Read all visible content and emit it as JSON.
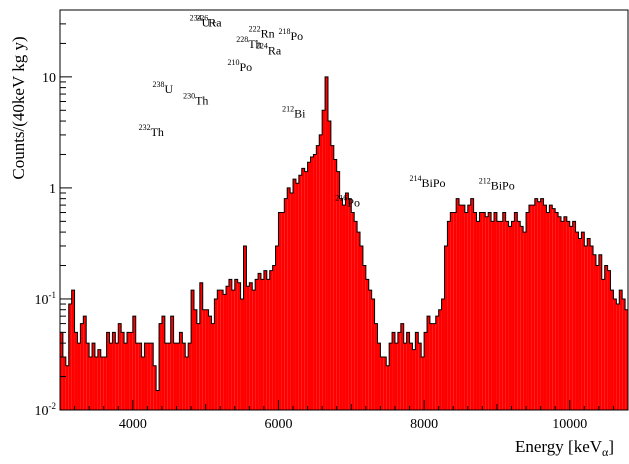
{
  "chart_data": {
    "type": "bar",
    "xlabel": "Energy [keV",
    "xlabel_sub": "α",
    "xlabel_close": "]",
    "ylabel": "Counts/(40keV kg y)",
    "xlim": [
      3000,
      10800
    ],
    "ylim": [
      0.01,
      40
    ],
    "yscale": "log",
    "bin_width": 40,
    "x_ticks": [
      {
        "value": 4000,
        "label": "4000"
      },
      {
        "value": 6000,
        "label": "6000"
      },
      {
        "value": 8000,
        "label": "8000"
      },
      {
        "value": 10000,
        "label": "10000"
      }
    ],
    "y_ticks": [
      {
        "value": 0.01,
        "base": "10",
        "exp": "-2"
      },
      {
        "value": 0.1,
        "base": "10",
        "exp": "-1"
      },
      {
        "value": 1,
        "label": "1"
      },
      {
        "value": 10,
        "label": "10"
      }
    ],
    "colors": {
      "fill": "#ff0000",
      "outline": "#000000"
    },
    "peaks": [
      {
        "sup": "232",
        "name": "Th",
        "x": 4080,
        "y": 2.6
      },
      {
        "sup": "238",
        "name": "U",
        "x": 4270,
        "y": 6.3
      },
      {
        "sup": "230",
        "name": "Th",
        "x": 4690,
        "y": 5.0
      },
      {
        "sup": "234",
        "name": "U+",
        "x": 4780,
        "y": 25
      },
      {
        "sup": "226",
        "name": "Ra",
        "x": 4870,
        "y": 25
      },
      {
        "sup": "210",
        "name": "Po",
        "x": 5300,
        "y": 10
      },
      {
        "sup": "228",
        "name": "Th",
        "x": 5420,
        "y": 16
      },
      {
        "sup": "222",
        "name": "Rn",
        "x": 5590,
        "y": 20
      },
      {
        "sup": "224",
        "name": "Ra",
        "x": 5690,
        "y": 14
      },
      {
        "sup": "218",
        "name": "Po",
        "x": 6000,
        "y": 19
      },
      {
        "sup": "212",
        "name": "Bi",
        "x": 6050,
        "y": 3.8
      },
      {
        "sup": "216",
        "name": "Po",
        "x": 6780,
        "y": 0.6
      },
      {
        "sup": "214",
        "name": "BiPo",
        "x": 7800,
        "y": 0.9
      },
      {
        "sup": "212",
        "name": "BiPo",
        "x": 8750,
        "y": 0.85
      }
    ],
    "bins_start": 3000,
    "values": [
      0.05,
      0.03,
      0.025,
      0.09,
      0.12,
      0.05,
      0.04,
      0.06,
      0.07,
      0.04,
      0.03,
      0.04,
      0.03,
      0.035,
      0.03,
      0.03,
      0.05,
      0.04,
      0.05,
      0.04,
      0.06,
      0.05,
      0.04,
      0.05,
      0.05,
      0.07,
      0.04,
      0.04,
      0.03,
      0.04,
      0.04,
      0.04,
      0.025,
      0.015,
      0.06,
      0.07,
      0.04,
      0.04,
      0.07,
      0.04,
      0.04,
      0.05,
      0.04,
      0.03,
      0.04,
      0.12,
      0.08,
      0.06,
      0.14,
      0.08,
      0.08,
      0.07,
      0.06,
      0.1,
      0.12,
      0.12,
      0.11,
      0.13,
      0.15,
      0.12,
      0.15,
      0.14,
      0.1,
      0.3,
      0.13,
      0.14,
      0.12,
      0.15,
      0.17,
      0.15,
      0.18,
      0.15,
      0.18,
      0.2,
      0.3,
      0.6,
      0.6,
      0.8,
      1.0,
      0.9,
      1.2,
      1.1,
      1.3,
      1.5,
      1.4,
      1.7,
      1.9,
      2.0,
      2.4,
      3.0,
      5.0,
      10.0,
      4.0,
      2.4,
      1.8,
      1.4,
      0.8,
      0.7,
      0.9,
      0.8,
      0.6,
      0.5,
      0.4,
      0.3,
      0.2,
      0.15,
      0.12,
      0.1,
      0.06,
      0.04,
      0.03,
      0.03,
      0.025,
      0.04,
      0.05,
      0.04,
      0.05,
      0.06,
      0.04,
      0.05,
      0.04,
      0.035,
      0.05,
      0.04,
      0.03,
      0.05,
      0.07,
      0.06,
      0.06,
      0.07,
      0.08,
      0.1,
      0.3,
      0.5,
      0.6,
      0.6,
      0.8,
      0.7,
      0.7,
      0.6,
      0.7,
      0.8,
      0.6,
      0.5,
      0.6,
      0.6,
      0.55,
      0.6,
      0.5,
      0.6,
      0.5,
      0.5,
      0.6,
      0.5,
      0.45,
      0.5,
      0.6,
      0.5,
      0.45,
      0.4,
      0.6,
      0.7,
      0.7,
      0.8,
      0.75,
      0.8,
      0.7,
      0.6,
      0.7,
      0.65,
      0.6,
      0.55,
      0.5,
      0.55,
      0.5,
      0.45,
      0.5,
      0.4,
      0.35,
      0.4,
      0.3,
      0.35,
      0.3,
      0.25,
      0.2,
      0.25,
      0.15,
      0.2,
      0.18,
      0.12,
      0.1,
      0.09,
      0.12,
      0.1,
      0.08,
      0.07,
      0.06,
      0.04,
      0.05,
      0.04,
      0.06,
      0.05,
      0.04,
      0.05,
      0.03,
      0.025,
      0.02,
      0.015,
      0.012,
      0.03,
      0.06,
      0.04,
      0.05,
      0.07,
      0.03,
      0.025,
      0.02,
      0.02,
      0.015,
      0.012,
      0.01
    ]
  }
}
